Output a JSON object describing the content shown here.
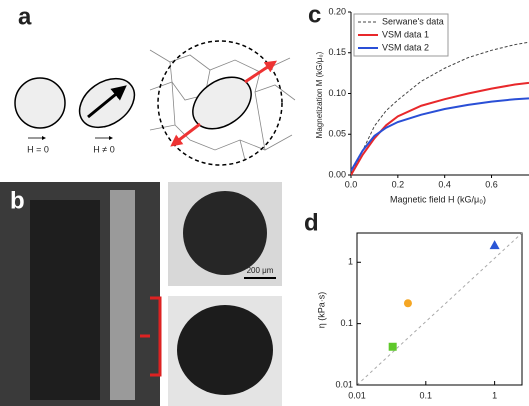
{
  "panels": {
    "a": {
      "label": "a",
      "h_zero": "H = 0",
      "h_nonzero": "H ≠ 0"
    },
    "b": {
      "label": "b",
      "scale_bar": "200 μm"
    }
  },
  "chart_data": [
    {
      "type": "line",
      "label": "c",
      "x_label": "Magnetic field H (kG/μ₀)",
      "y_label": "Magnetization M (kG/μ₀)",
      "x": [
        0,
        0.05,
        0.1,
        0.15,
        0.2,
        0.3,
        0.4,
        0.5,
        0.6,
        0.7,
        0.76
      ],
      "series": [
        {
          "name": "Serwane's data",
          "color": "#444444",
          "dashed": true,
          "values": [
            0,
            0.03,
            0.06,
            0.079,
            0.092,
            0.115,
            0.131,
            0.144,
            0.153,
            0.16,
            0.163
          ]
        },
        {
          "name": "VSM data 1",
          "color": "#e8282b",
          "values": [
            0,
            0.025,
            0.045,
            0.061,
            0.072,
            0.085,
            0.093,
            0.1,
            0.106,
            0.111,
            0.113
          ]
        },
        {
          "name": "VSM data 2",
          "color": "#2a4fd6",
          "values": [
            0.005,
            0.03,
            0.048,
            0.058,
            0.065,
            0.074,
            0.081,
            0.086,
            0.09,
            0.093,
            0.094
          ]
        }
      ],
      "xlim": [
        0,
        0.76
      ],
      "ylim": [
        0,
        0.2
      ],
      "xticks": [
        {
          "value": 0,
          "label": "0.0"
        },
        0.2,
        0.4,
        0.6
      ],
      "yticks": [
        {
          "value": 0,
          "label": "0.00"
        },
        0.05,
        {
          "value": 0.1,
          "label": "0.10"
        },
        0.15,
        {
          "value": 0.2,
          "label": "0.20"
        }
      ]
    },
    {
      "type": "scatter",
      "label": "d",
      "y_label": "η (kPa·s)",
      "log": true,
      "series": [
        {
          "shape": "square",
          "color": "#5fc82b",
          "x": [
            0.033
          ],
          "values": [
            0.042
          ]
        },
        {
          "shape": "circle",
          "color": "#f5a623",
          "x": [
            0.055
          ],
          "values": [
            0.215
          ]
        },
        {
          "shape": "triangle",
          "color": "#2a56d6",
          "x": [
            1.0
          ],
          "values": [
            1.9
          ]
        }
      ],
      "xlim": [
        0.01,
        2.5
      ],
      "ylim": [
        0.01,
        3
      ],
      "xticks": [
        0.01,
        0.1,
        1
      ],
      "yticks": [
        0.01,
        0.1,
        1
      ]
    }
  ]
}
